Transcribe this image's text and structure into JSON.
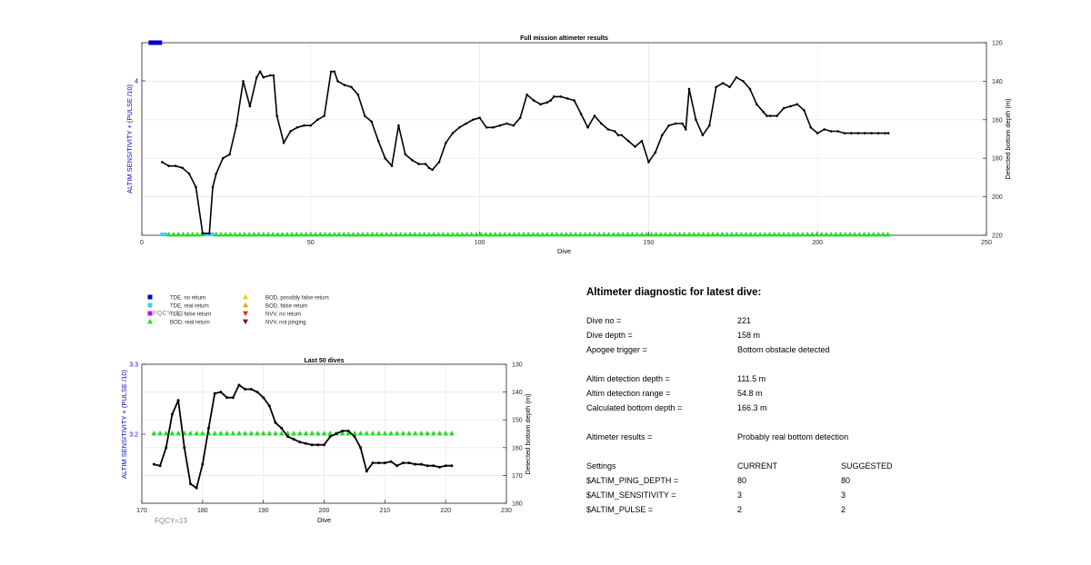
{
  "chart_data": [
    {
      "type": "line",
      "title": "Full mission altimeter results",
      "xlabel": "Dive",
      "ylabel_left": "ALTIM SENSITIVITY + (PULSE /10)",
      "ylabel_right": "Detected bottom depth (m)",
      "xlim": [
        0,
        250
      ],
      "x_ticks": [
        "0",
        "50",
        "100",
        "150",
        "200",
        "250"
      ],
      "left_ticks": [
        "4"
      ],
      "right_ylim": [
        120,
        220
      ],
      "right_reversed": true,
      "right_ticks": [
        "120",
        "140",
        "160",
        "180",
        "200",
        "220"
      ],
      "grid": true,
      "settings_marker": {
        "x_start": 2,
        "x_end": 6,
        "y_value": 4.2,
        "color": "#0000cc"
      },
      "series": [
        {
          "color": "#000000",
          "x": [
            6,
            8,
            10,
            12,
            14,
            16,
            18,
            20,
            21,
            22,
            24,
            26,
            28,
            30,
            32,
            34,
            35,
            36,
            38,
            39,
            40,
            42,
            44,
            46,
            48,
            50,
            52,
            54,
            56,
            57,
            58,
            60,
            62,
            64,
            66,
            68,
            70,
            72,
            74,
            76,
            78,
            80,
            82,
            84,
            85,
            86,
            88,
            90,
            92,
            94,
            96,
            98,
            100,
            102,
            104,
            106,
            108,
            110,
            112,
            114,
            116,
            118,
            120,
            121,
            122,
            124,
            126,
            128,
            130,
            132,
            134,
            136,
            138,
            140,
            141,
            142,
            144,
            146,
            148,
            150,
            152,
            154,
            156,
            158,
            160,
            161,
            162,
            164,
            166,
            168,
            170,
            172,
            174,
            176,
            178,
            180,
            182,
            184,
            185,
            186,
            188,
            190,
            192,
            194,
            196,
            198,
            200,
            202,
            204,
            206,
            208,
            210,
            212,
            214,
            216,
            218,
            220,
            221
          ],
          "y": [
            182,
            184,
            184,
            185,
            188,
            195,
            219,
            219,
            195,
            188,
            180,
            178,
            163,
            140,
            153,
            138,
            135,
            138,
            137,
            137,
            158,
            172,
            166,
            164,
            163,
            163,
            160,
            158,
            135,
            135,
            140,
            142,
            143,
            147,
            158,
            161,
            171,
            180,
            184,
            163,
            178,
            181,
            183,
            183,
            185,
            186,
            182,
            172,
            167,
            164,
            162,
            160,
            159,
            164,
            164,
            163,
            162,
            163,
            159,
            147,
            150,
            152,
            151,
            150,
            148,
            148,
            149,
            150,
            157,
            164,
            158,
            162,
            165,
            166,
            168,
            168,
            171,
            174,
            171,
            182,
            177,
            168,
            163,
            162,
            162,
            165,
            144,
            160,
            168,
            163,
            143,
            141,
            143,
            138,
            140,
            144,
            152,
            156,
            158,
            158,
            158,
            154,
            153,
            152,
            155,
            164,
            167,
            165,
            166,
            166,
            167,
            167,
            167,
            167,
            167,
            167,
            167,
            167
          ]
        }
      ],
      "markers": [
        {
          "label": "TDE, real return",
          "shape": "square",
          "color": "#40d0f0",
          "x": [
            6,
            7,
            18,
            19,
            20,
            21
          ]
        },
        {
          "label": "BOD, real return",
          "shape": "triangle",
          "color": "#22dd22",
          "x_range": [
            8,
            221
          ],
          "step": 1.4,
          "exclude": [
            18,
            21
          ]
        }
      ]
    },
    {
      "type": "line",
      "title": "Last 50 dives",
      "xlabel": "Dive",
      "ylabel_left": "ALTIM SENSITIVITY + (PULSE /10)",
      "ylabel_right": "Detected bottom depth (m)",
      "xlim": [
        170,
        230
      ],
      "x_ticks": [
        "170",
        "180",
        "190",
        "200",
        "210",
        "220",
        "230"
      ],
      "left_ticks": [
        "3.3",
        "3.2"
      ],
      "right_ylim": [
        130,
        180
      ],
      "right_reversed": true,
      "right_ticks": [
        "130",
        "140",
        "150",
        "160",
        "170",
        "180"
      ],
      "grid": true,
      "series": [
        {
          "color": "#000000",
          "x": [
            172,
            173,
            174,
            175,
            176,
            177,
            178,
            179,
            180,
            181,
            182,
            183,
            184,
            185,
            186,
            187,
            188,
            189,
            190,
            191,
            192,
            193,
            194,
            195,
            196,
            197,
            198,
            199,
            200,
            201,
            202,
            203,
            204,
            205,
            206,
            207,
            208,
            209,
            210,
            211,
            212,
            213,
            214,
            215,
            216,
            217,
            218,
            219,
            220,
            221
          ],
          "y": [
            166,
            166.5,
            160,
            148,
            143,
            160,
            173,
            174.5,
            166,
            153,
            140.5,
            140,
            142,
            142,
            137.5,
            139,
            139,
            140,
            142,
            145,
            151,
            153,
            156,
            157,
            158,
            158.5,
            159,
            159,
            159,
            156,
            155,
            154,
            154,
            156,
            160,
            168.5,
            165.5,
            165.5,
            165.5,
            165,
            166.5,
            165.5,
            165.5,
            166,
            166,
            166.5,
            166.5,
            167,
            166.5,
            166.5
          ]
        }
      ],
      "markers": [
        {
          "label": "BOD, real return",
          "shape": "triangle",
          "color": "#22dd22",
          "x_range": [
            172,
            221
          ],
          "step": 1
        }
      ],
      "annotation": "FQCY=13"
    }
  ],
  "legend": [
    {
      "label": "TDE, no return",
      "shape": "square",
      "color": "#0000cc"
    },
    {
      "label": "TDE, real return",
      "shape": "square",
      "color": "#40d0f0"
    },
    {
      "label": "TDE, false return",
      "shape": "square",
      "color": "#a020f0"
    },
    {
      "label": "BOD, real return",
      "shape": "triangle-up",
      "color": "#22dd22"
    },
    {
      "label": "BOD, possibly false return",
      "shape": "triangle-up",
      "color": "#f0d000"
    },
    {
      "label": "BOD, false return",
      "shape": "triangle-up",
      "color": "#f0a000"
    },
    {
      "label": "NVV, no return",
      "shape": "triangle-down",
      "color": "#e03000"
    },
    {
      "label": "NVV, not pinging",
      "shape": "triangle-down",
      "color": "#7a1000"
    }
  ],
  "legend_overlay": "FQCY=13",
  "diagnostic": {
    "title": "Altimeter diagnostic for latest dive:",
    "dive_no_label": "Dive no =",
    "dive_no": "221",
    "dive_depth_label": "Dive depth =",
    "dive_depth": "158 m",
    "apogee_label": "Apogee trigger =",
    "apogee": "Bottom obstacle detected",
    "det_depth_label": "Altim detection depth =",
    "det_depth": "111.5 m",
    "det_range_label": "Altim detection range =",
    "det_range": "54.8 m",
    "calc_depth_label": "Calculated bottom depth =",
    "calc_depth": "166.3 m",
    "results_label": "Altimeter results =",
    "results": "Probably real bottom detection",
    "settings_label": "Settings",
    "current_label": "CURRENT",
    "suggested_label": "SUGGESTED",
    "ping_label": "$ALTIM_PING_DEPTH =",
    "ping_current": "80",
    "ping_suggested": "80",
    "sens_label": "$ALTIM_SENSITIVITY =",
    "sens_current": "3",
    "sens_suggested": "3",
    "pulse_label": "$ALTIM_PULSE =",
    "pulse_current": "2",
    "pulse_suggested": "2"
  }
}
